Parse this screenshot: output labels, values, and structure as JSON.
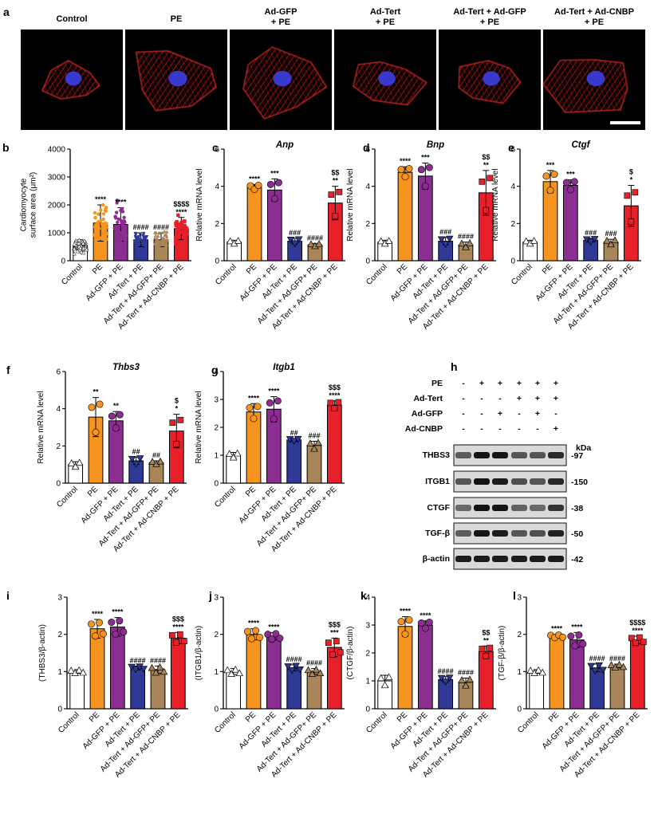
{
  "figure": {
    "panel_a": {
      "label": "a",
      "conditions": [
        [
          "Control"
        ],
        [
          "PE"
        ],
        [
          "Ad-GFP",
          "+ PE"
        ],
        [
          "Ad-Tert",
          "+ PE"
        ],
        [
          "Ad-Tert + Ad-GFP",
          "+ PE"
        ],
        [
          "Ad-Tert + Ad-CNBP",
          "+ PE"
        ]
      ]
    },
    "panel_h": {
      "label": "h",
      "rows": [
        {
          "label": "PE",
          "cells": [
            "-",
            "+",
            "+",
            "+",
            "+",
            "+"
          ]
        },
        {
          "label": "Ad-Tert",
          "cells": [
            "-",
            "-",
            "-",
            "+",
            "+",
            "+"
          ]
        },
        {
          "label": "Ad-GFP",
          "cells": [
            "-",
            "-",
            "+",
            "-",
            "+",
            "-"
          ]
        },
        {
          "label": "Ad-CNBP",
          "cells": [
            "-",
            "-",
            "-",
            "-",
            "-",
            "+"
          ]
        }
      ],
      "kda_label": "kDa",
      "blots": [
        {
          "name": "THBS3",
          "kda": "97"
        },
        {
          "name": "ITGB1",
          "kda": "150"
        },
        {
          "name": "CTGF",
          "kda": "38"
        },
        {
          "name": "TGF-β",
          "kda": "50"
        },
        {
          "name": "β-actin",
          "kda": "42"
        }
      ]
    }
  },
  "chart_data": [
    {
      "panel": "b",
      "type": "bar",
      "title": "",
      "xlabel": "",
      "ylabel": "Cardiomyocyte surface area (μm²)",
      "ylim": [
        0,
        4000
      ],
      "yticks": [
        0,
        1000,
        2000,
        3000,
        4000
      ],
      "categories": [
        "Control",
        "PE",
        "Ad-GFP + PE",
        "Ad-Tert + PE",
        "Ad-Tert + Ad-GFP+ PE",
        "Ad-Tert + Ad-CNBP + PE"
      ],
      "values": [
        550,
        1350,
        1300,
        750,
        750,
        1150
      ],
      "errors": [
        200,
        650,
        600,
        250,
        250,
        400
      ],
      "significance": [
        [
          ""
        ],
        [
          "****"
        ],
        [
          "****"
        ],
        [
          "####"
        ],
        [
          "####"
        ],
        [
          "$$$$",
          "****"
        ]
      ]
    },
    {
      "panel": "c",
      "type": "bar",
      "title": "Anp",
      "xlabel": "",
      "ylabel": "Relative mRNA level",
      "ylim": [
        0,
        6
      ],
      "yticks": [
        0,
        2,
        4,
        6
      ],
      "categories": [
        "Control",
        "PE",
        "Ad-GFP + PE",
        "Ad-Tert + PE",
        "Ad-Tert + Ad-GFP+ PE",
        "Ad-Tert + Ad-CNBP + PE"
      ],
      "values": [
        1.0,
        3.95,
        3.8,
        1.05,
        0.85,
        3.1
      ],
      "errors": [
        0.1,
        0.15,
        0.6,
        0.15,
        0.08,
        0.9
      ],
      "significance": [
        [
          ""
        ],
        [
          "****"
        ],
        [
          "***"
        ],
        [
          "###"
        ],
        [
          "####"
        ],
        [
          "$$",
          "**"
        ]
      ]
    },
    {
      "panel": "d",
      "type": "bar",
      "title": "Bnp",
      "xlabel": "",
      "ylabel": "Relative mRNA level",
      "ylim": [
        0,
        6
      ],
      "yticks": [
        0,
        2,
        4,
        6
      ],
      "categories": [
        "Control",
        "PE",
        "Ad-GFP + PE",
        "Ad-Tert + PE",
        "Ad-Tert + Ad-GFP+ PE",
        "Ad-Tert + Ad-CNBP + PE"
      ],
      "values": [
        1.0,
        4.75,
        4.55,
        1.05,
        0.85,
        3.65
      ],
      "errors": [
        0.1,
        0.3,
        0.7,
        0.2,
        0.15,
        1.2
      ],
      "significance": [
        [
          ""
        ],
        [
          "****"
        ],
        [
          "***"
        ],
        [
          "###"
        ],
        [
          "####"
        ],
        [
          "$$",
          "**"
        ]
      ]
    },
    {
      "panel": "e",
      "type": "bar",
      "title": "Ctgf",
      "xlabel": "",
      "ylabel": "Relative mRNA level",
      "ylim": [
        0,
        6
      ],
      "yticks": [
        0,
        2,
        4,
        6
      ],
      "categories": [
        "Control",
        "PE",
        "Ad-GFP + PE",
        "Ad-Tert + PE",
        "Ad-Tert + Ad-GFP+ PE",
        "Ad-Tert + Ad-CNBP + PE"
      ],
      "values": [
        1.0,
        4.25,
        4.05,
        1.1,
        1.0,
        2.95
      ],
      "errors": [
        0.1,
        0.6,
        0.3,
        0.1,
        0.15,
        1.1
      ],
      "significance": [
        [
          ""
        ],
        [
          "***"
        ],
        [
          "***"
        ],
        [
          "###"
        ],
        [
          "###"
        ],
        [
          "$",
          "*"
        ]
      ]
    },
    {
      "panel": "f",
      "type": "bar",
      "title": "Thbs3",
      "xlabel": "",
      "ylabel": "Relative mRNA level",
      "ylim": [
        0,
        6
      ],
      "yticks": [
        0,
        2,
        4,
        6
      ],
      "categories": [
        "Control",
        "PE",
        "Ad-GFP + PE",
        "Ad-Tert + PE",
        "Ad-Tert + Ad-GFP+ PE",
        "Ad-Tert + Ad-CNBP + PE"
      ],
      "values": [
        1.0,
        3.55,
        3.35,
        1.2,
        1.1,
        2.8
      ],
      "errors": [
        0.15,
        1.05,
        0.5,
        0.2,
        0.1,
        0.9
      ],
      "significance": [
        [
          ""
        ],
        [
          "**"
        ],
        [
          "**"
        ],
        [
          "##"
        ],
        [
          "##"
        ],
        [
          "$",
          "*"
        ]
      ]
    },
    {
      "panel": "g",
      "type": "bar",
      "title": "Itgb1",
      "xlabel": "",
      "ylabel": "Relative mRNA level",
      "ylim": [
        0,
        4
      ],
      "yticks": [
        0,
        1,
        2,
        3,
        4
      ],
      "categories": [
        "Control",
        "PE",
        "Ad-GFP + PE",
        "Ad-Tert + PE",
        "Ad-Tert + Ad-GFP+ PE",
        "Ad-Tert + Ad-CNBP + PE"
      ],
      "values": [
        1.0,
        2.55,
        2.65,
        1.55,
        1.35,
        2.8
      ],
      "errors": [
        0.1,
        0.3,
        0.45,
        0.05,
        0.15,
        0.15
      ],
      "significance": [
        [
          ""
        ],
        [
          "****"
        ],
        [
          "****"
        ],
        [
          "##"
        ],
        [
          "###"
        ],
        [
          "$$$",
          "****"
        ]
      ]
    },
    {
      "panel": "i",
      "type": "bar",
      "title": "",
      "xlabel": "",
      "ylabel": "(THBS3/β-actin)",
      "ylim": [
        0,
        3
      ],
      "yticks": [
        0,
        1,
        2,
        3
      ],
      "categories": [
        "Control",
        "PE",
        "Ad-GFP + PE",
        "Ad-Tert + PE",
        "Ad-Tert + Ad-GFP+ PE",
        "Ad-Tert + Ad-CNBP + PE"
      ],
      "values": [
        1.0,
        2.15,
        2.2,
        1.1,
        1.05,
        1.9
      ],
      "errors": [
        0.05,
        0.25,
        0.25,
        0.05,
        0.1,
        0.15
      ],
      "significance": [
        [
          ""
        ],
        [
          "****"
        ],
        [
          "****"
        ],
        [
          "####"
        ],
        [
          "####"
        ],
        [
          "$$$",
          "****"
        ]
      ]
    },
    {
      "panel": "j",
      "type": "bar",
      "title": "",
      "xlabel": "",
      "ylabel": "(ITGB1/β-actin)",
      "ylim": [
        0,
        3
      ],
      "yticks": [
        0,
        1,
        2,
        3
      ],
      "categories": [
        "Control",
        "PE",
        "Ad-GFP + PE",
        "Ad-Tert + PE",
        "Ad-Tert + Ad-GFP+ PE",
        "Ad-Tert + Ad-CNBP + PE"
      ],
      "values": [
        1.0,
        2.0,
        1.95,
        1.1,
        1.0,
        1.65
      ],
      "errors": [
        0.08,
        0.15,
        0.1,
        0.08,
        0.08,
        0.25
      ],
      "significance": [
        [
          ""
        ],
        [
          "****"
        ],
        [
          "****"
        ],
        [
          "####"
        ],
        [
          "####"
        ],
        [
          "$$$",
          "***"
        ]
      ]
    },
    {
      "panel": "k",
      "type": "bar",
      "title": "",
      "xlabel": "",
      "ylabel": "(CTGF/β-actin)",
      "ylim": [
        0,
        4
      ],
      "yticks": [
        0,
        1,
        2,
        3,
        4
      ],
      "categories": [
        "Control",
        "PE",
        "Ad-GFP + PE",
        "Ad-Tert + PE",
        "Ad-Tert + Ad-GFP+ PE",
        "Ad-Tert + Ad-CNBP + PE"
      ],
      "values": [
        1.0,
        2.95,
        3.0,
        1.05,
        0.95,
        2.05
      ],
      "errors": [
        0.2,
        0.35,
        0.15,
        0.1,
        0.15,
        0.2
      ],
      "significance": [
        [
          ""
        ],
        [
          "****"
        ],
        [
          "****"
        ],
        [
          "####"
        ],
        [
          "####"
        ],
        [
          "$$",
          "**"
        ]
      ]
    },
    {
      "panel": "l",
      "type": "bar",
      "title": "",
      "xlabel": "",
      "ylabel": "(TGF-β/β-actin)",
      "ylim": [
        0,
        3
      ],
      "yticks": [
        0,
        1,
        2,
        3
      ],
      "categories": [
        "Control",
        "PE",
        "Ad-GFP + PE",
        "Ad-Tert + PE",
        "Ad-Tert + Ad-GFP+ PE",
        "Ad-Tert + Ad-CNBP + PE"
      ],
      "values": [
        1.0,
        1.95,
        1.85,
        1.1,
        1.15,
        1.85
      ],
      "errors": [
        0.05,
        0.05,
        0.2,
        0.1,
        0.05,
        0.1
      ],
      "significance": [
        [
          ""
        ],
        [
          "****"
        ],
        [
          "****"
        ],
        [
          "####"
        ],
        [
          "####"
        ],
        [
          "$$$$",
          "****"
        ]
      ]
    }
  ],
  "colors": {
    "control": "#ffffff",
    "pe": "#f5951f",
    "ad_gfp_pe": "#8c2d91",
    "ad_tert_pe": "#2e3a95",
    "ad_tert_gfp_pe": "#a9865a",
    "ad_tert_cnbp_pe": "#e8202a"
  }
}
